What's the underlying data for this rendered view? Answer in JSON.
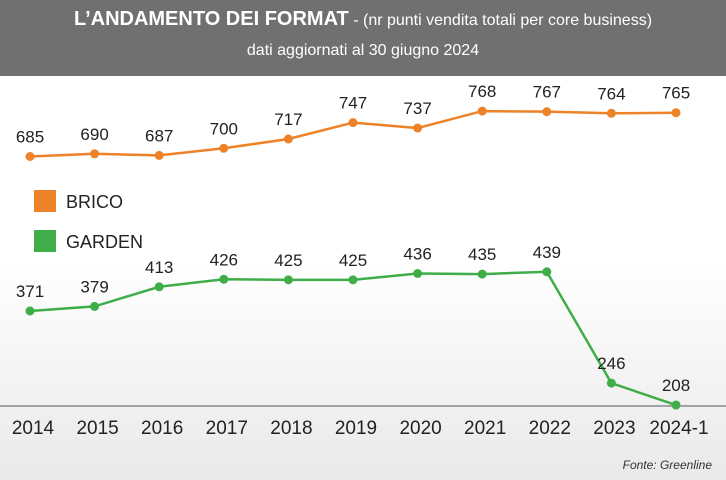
{
  "header": {
    "title_main": "L’ANDAMENTO DEI FORMAT",
    "title_sep": " - ",
    "title_sub": "(nr punti vendita totali per core business)",
    "subtitle": "dati aggiornati al 30 giugno 2024"
  },
  "source": "Fonte: Greenline",
  "chart_data": {
    "type": "line",
    "x": [
      "2014",
      "2015",
      "2016",
      "2017",
      "2018",
      "2019",
      "2020",
      "2021",
      "2022",
      "2023",
      "2024-1"
    ],
    "series": [
      {
        "name": "BRICO",
        "color": "#ee8228",
        "values": [
          685,
          690,
          687,
          700,
          717,
          747,
          737,
          768,
          767,
          764,
          765
        ]
      },
      {
        "name": "GARDEN",
        "color": "#3fae49",
        "values": [
          371,
          379,
          413,
          426,
          425,
          425,
          436,
          435,
          439,
          246,
          208
        ]
      }
    ],
    "legend_position": "left",
    "grid": false
  }
}
